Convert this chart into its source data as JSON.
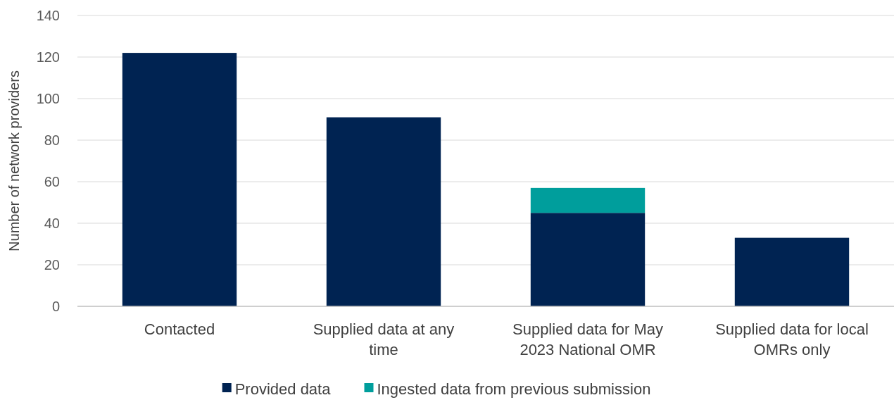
{
  "chart_data": {
    "type": "bar",
    "ylabel": "Number of network providers",
    "categories": [
      "Contacted",
      "Supplied data at any time",
      "Supplied data for May 2023 National OMR",
      "Supplied data for local OMRs only"
    ],
    "stacked": true,
    "series": [
      {
        "name": "Provided data",
        "color": "#002352",
        "values": [
          122,
          91,
          45,
          33
        ]
      },
      {
        "name": "Ingested data from previous submission",
        "color": "#009e9c",
        "values": [
          null,
          null,
          12,
          null
        ]
      }
    ],
    "ylim": [
      0,
      140
    ],
    "yticks": [
      0,
      20,
      40,
      60,
      80,
      100,
      120,
      140
    ],
    "grid": "y",
    "legend": "bottom"
  }
}
